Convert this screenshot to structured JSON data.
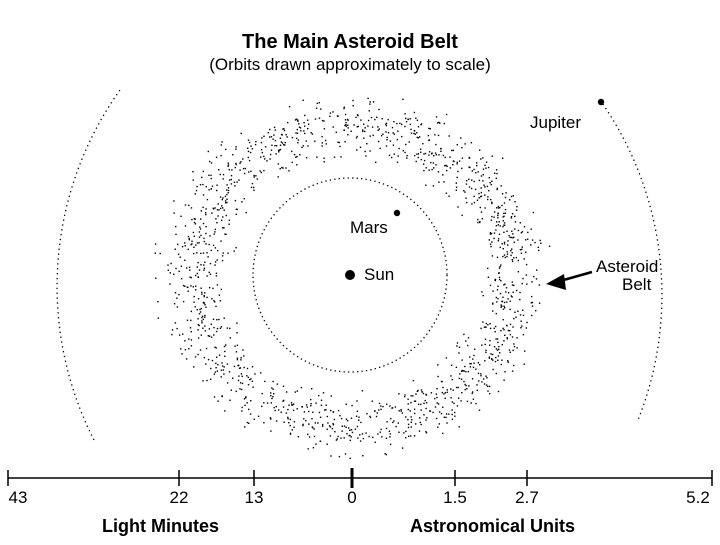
{
  "title": "The Main Asteroid Belt",
  "subtitle": "(Orbits drawn approximately to scale)",
  "bodies": {
    "sun": "Sun",
    "mars": "Mars",
    "jupiter": "Jupiter",
    "belt_line1": "Asteroid",
    "belt_line2": "Belt"
  },
  "scale": {
    "left_ticks": [
      "43",
      "22",
      "13"
    ],
    "center_tick": "0",
    "right_ticks": [
      "1.5",
      "2.7",
      "5.2"
    ],
    "left_unit": "Light Minutes",
    "right_unit": "Astronomical Units"
  }
}
